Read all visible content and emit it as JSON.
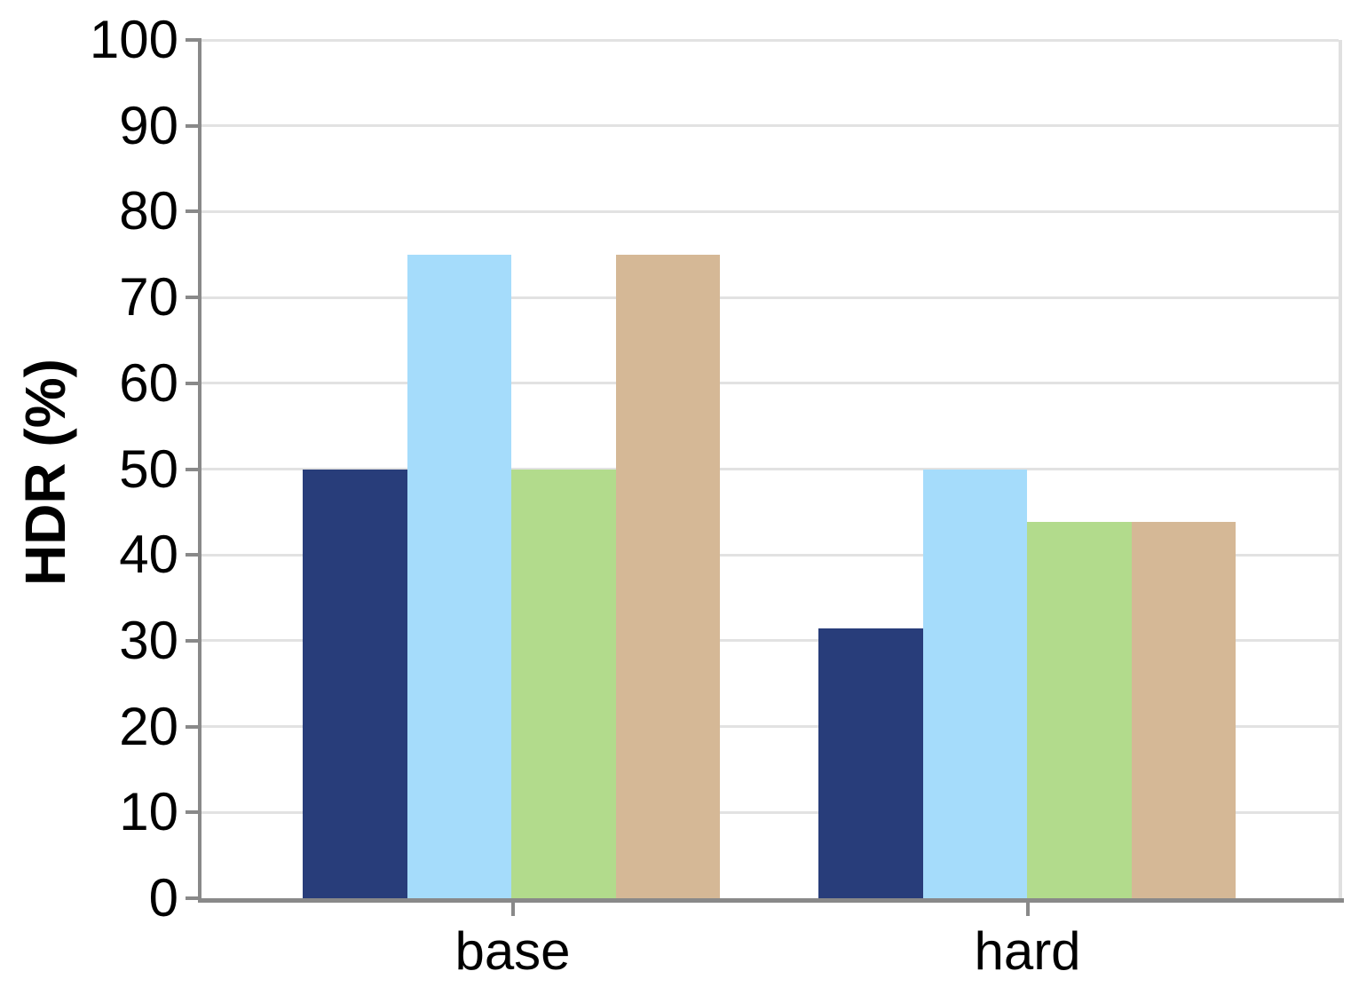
{
  "chart_data": {
    "type": "bar",
    "title": "",
    "xlabel": "",
    "ylabel": "HDR (%)",
    "categories": [
      "base",
      "hard"
    ],
    "series": [
      {
        "name": "navy",
        "color": "#283D7A",
        "values": [
          50,
          31.4
        ]
      },
      {
        "name": "light-blue",
        "color": "#A5DCFB",
        "values": [
          75,
          50
        ]
      },
      {
        "name": "green",
        "color": "#B2DB8C",
        "values": [
          50,
          43.8
        ]
      },
      {
        "name": "tan",
        "color": "#D5B896",
        "values": [
          75,
          43.8
        ]
      }
    ],
    "ylim": [
      0,
      100
    ],
    "yticks": [
      0,
      10,
      20,
      30,
      40,
      50,
      60,
      70,
      80,
      90,
      100
    ],
    "grid": true,
    "legend": "none",
    "style": {
      "background": "#FFFFFF",
      "grid_color": "#E2E2E2",
      "axis_color": "#898989",
      "right_spine_color": "#E0E0E0",
      "text_color": "#000000"
    }
  }
}
